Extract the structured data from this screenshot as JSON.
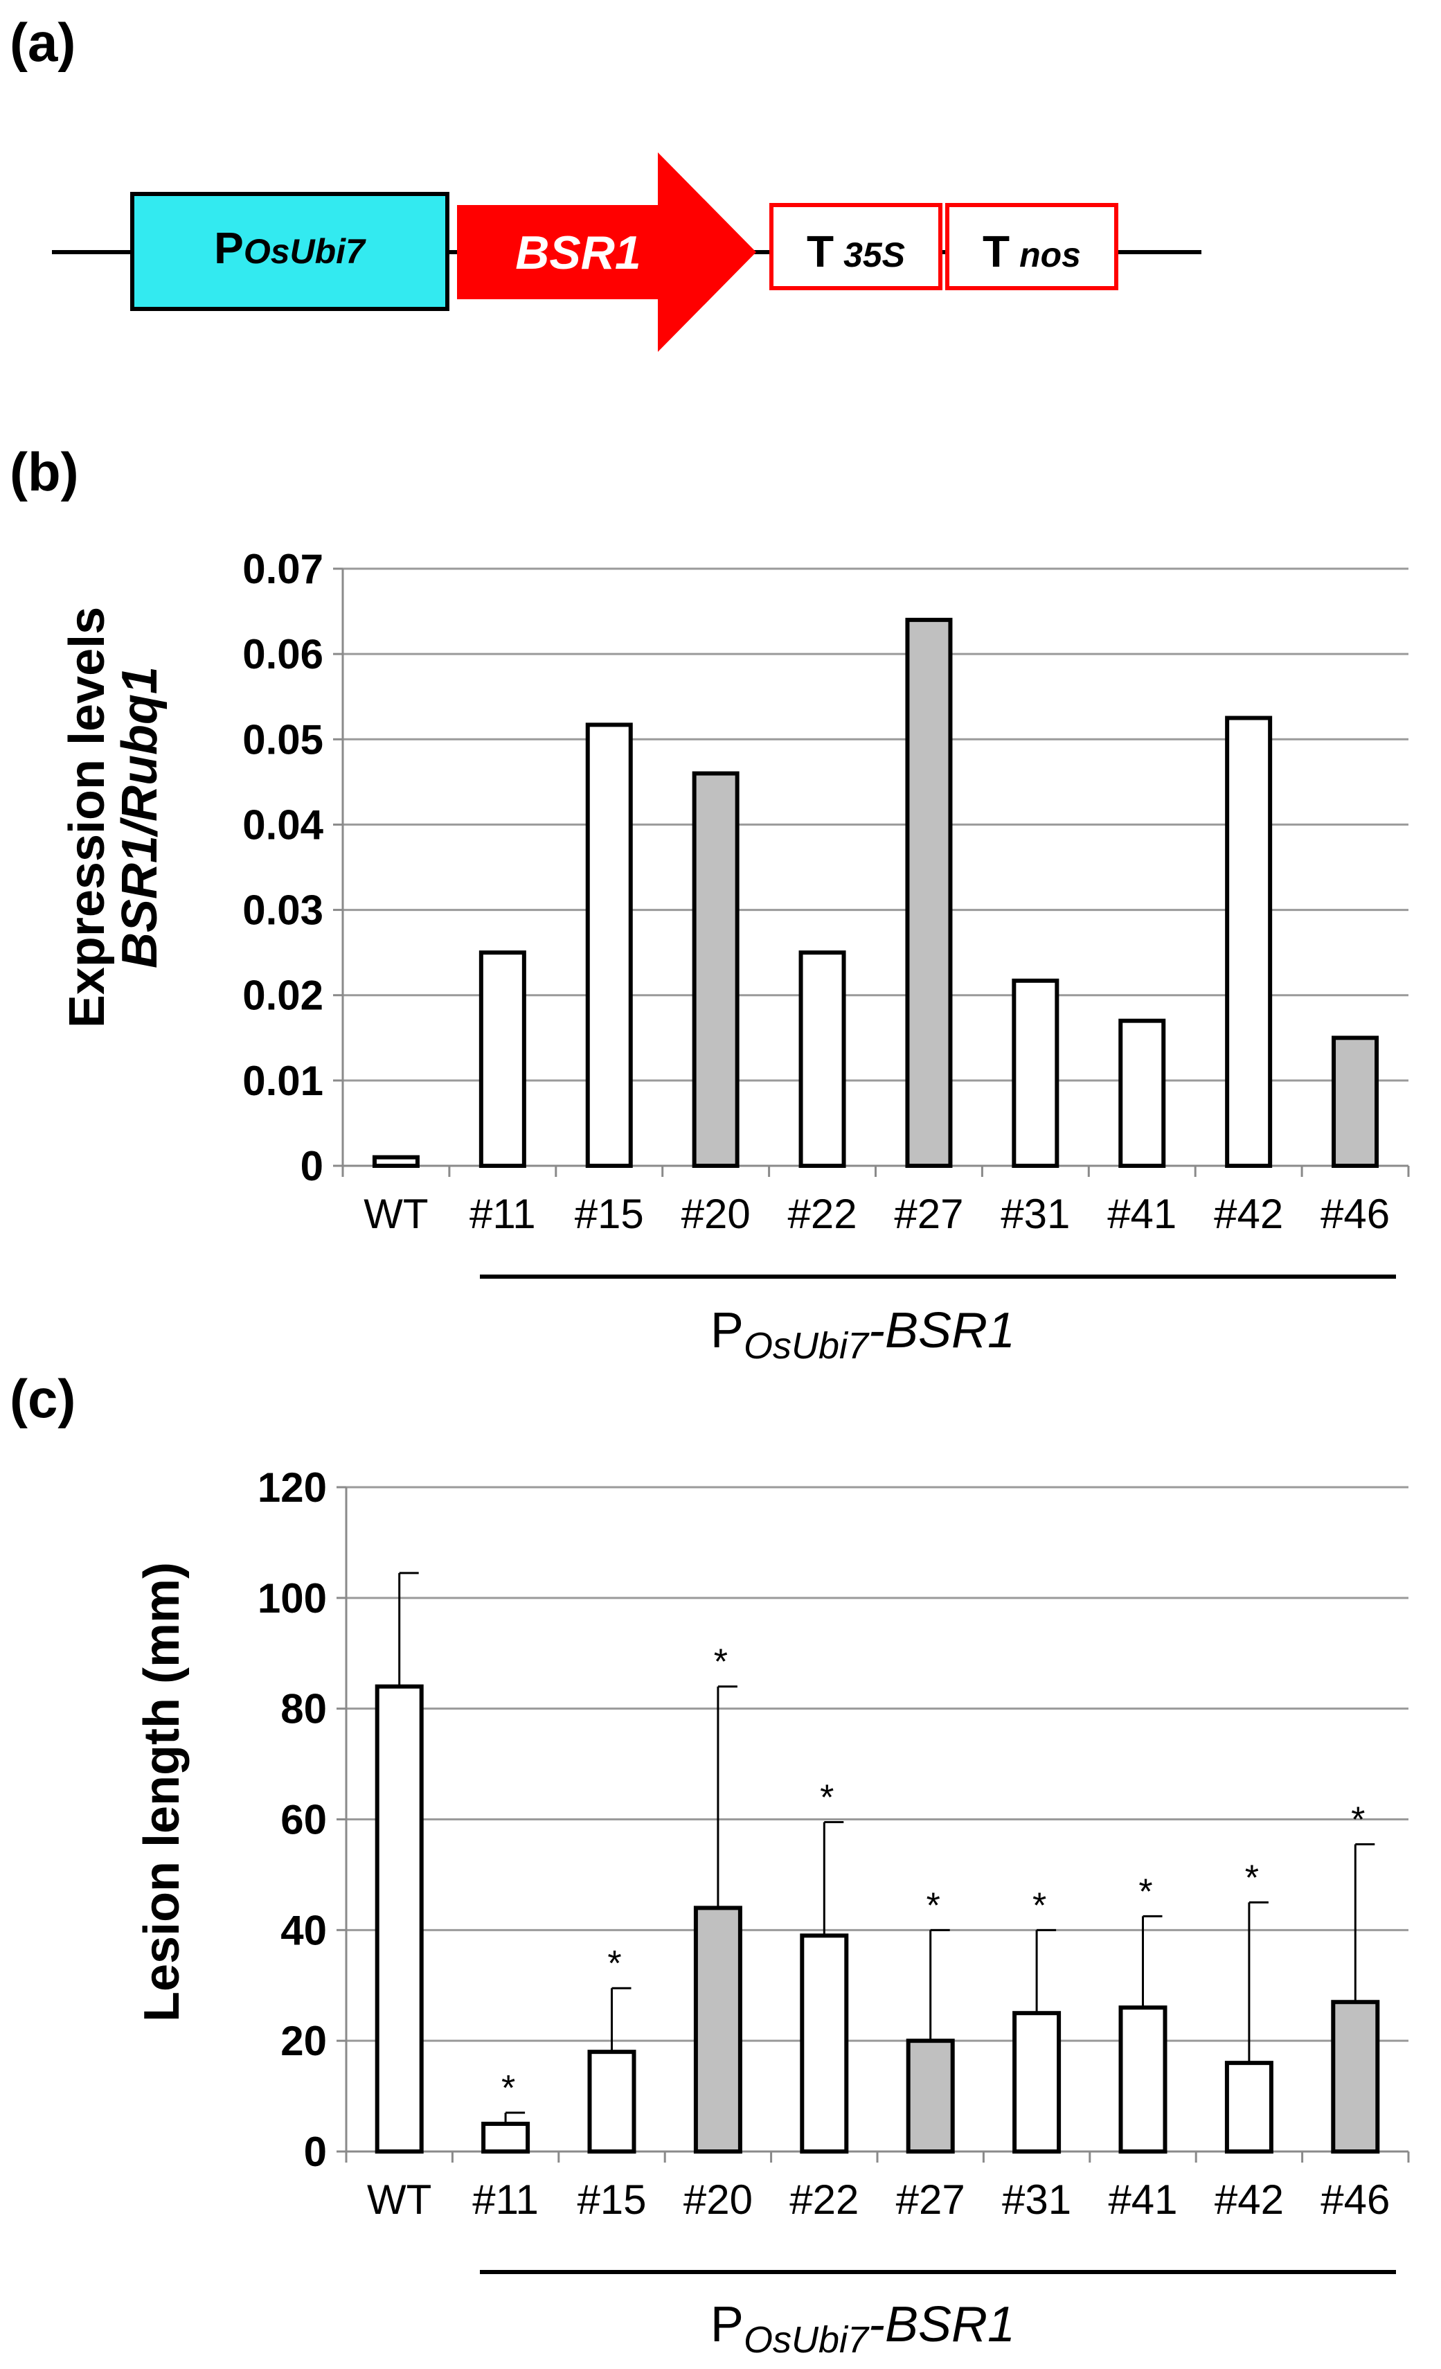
{
  "colors": {
    "promoter_fill": "#33eaf0",
    "gene_fill": "#ff0000",
    "terminator_border": "#ff0000",
    "bar_open": "#ffffff",
    "bar_gray": "#c0c0c0"
  },
  "panel_a": {
    "label": "(a)",
    "promoter": {
      "prefix": "P",
      "sub": "OsUbi7"
    },
    "gene": "BSR1",
    "term1": {
      "prefix": "T",
      "sub": "35S"
    },
    "term2": {
      "prefix": "T",
      "sub": "nos"
    }
  },
  "chart_data": [
    {
      "panel_label": "(b)",
      "type": "bar",
      "ylabel_line1": "Expression levels",
      "ylabel_line2": "BSR1/Rubq1",
      "ylim": [
        0,
        0.07
      ],
      "yticks": [
        "0",
        "0.01",
        "0.02",
        "0.03",
        "0.04",
        "0.05",
        "0.06",
        "0.07"
      ],
      "categories": [
        "WT",
        "#11",
        "#15",
        "#20",
        "#22",
        "#27",
        "#31",
        "#41",
        "#42",
        "#46"
      ],
      "values": [
        0.001,
        0.025,
        0.0517,
        0.046,
        0.025,
        0.064,
        0.0217,
        0.017,
        0.0525,
        0.015
      ],
      "shaded": [
        false,
        false,
        false,
        true,
        false,
        true,
        false,
        false,
        false,
        true
      ],
      "grid": true,
      "group_label": {
        "prefix": "P",
        "sub": "OsUbi7",
        "suffix": "-BSR1"
      }
    },
    {
      "panel_label": "(c)",
      "type": "bar",
      "ylabel": "Lesion length (mm)",
      "ylim": [
        0,
        120
      ],
      "yticks": [
        "0",
        "20",
        "40",
        "60",
        "80",
        "100",
        "120"
      ],
      "categories": [
        "WT",
        "#11",
        "#15",
        "#20",
        "#22",
        "#27",
        "#31",
        "#41",
        "#42",
        "#46"
      ],
      "values": [
        84,
        5,
        18,
        44,
        39,
        20,
        25,
        26,
        16,
        27
      ],
      "errors": [
        20.5,
        2,
        11.5,
        40,
        20.5,
        20,
        15,
        16.5,
        29,
        28.5
      ],
      "significant": [
        false,
        true,
        true,
        true,
        true,
        true,
        true,
        true,
        true,
        true
      ],
      "significance_marker": "*",
      "shaded": [
        false,
        false,
        false,
        true,
        false,
        true,
        false,
        false,
        false,
        true
      ],
      "grid": true,
      "group_label": {
        "prefix": "P",
        "sub": "OsUbi7",
        "suffix": "-BSR1"
      }
    }
  ]
}
